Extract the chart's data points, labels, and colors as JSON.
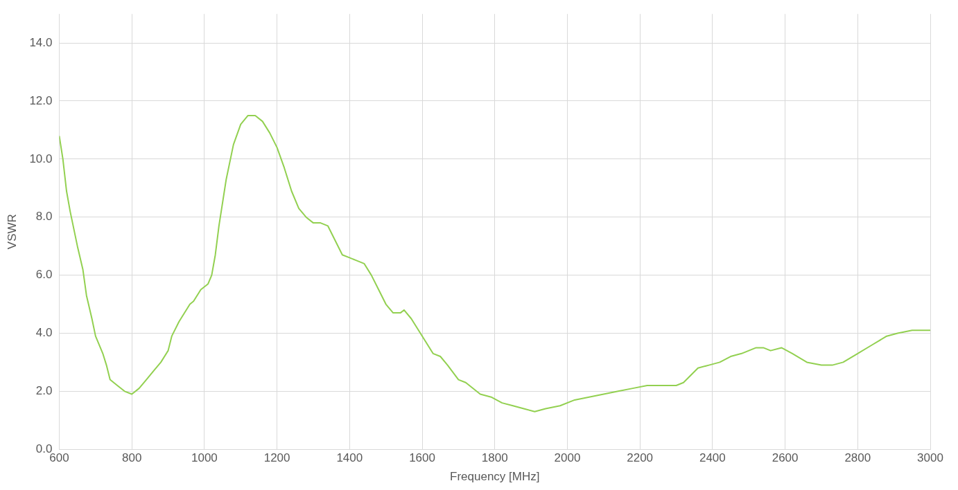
{
  "chart_data": {
    "type": "line",
    "xlabel": "Frequency [MHz]",
    "ylabel": "VSWR",
    "x": [
      600,
      610,
      620,
      630,
      650,
      665,
      675,
      690,
      700,
      720,
      730,
      740,
      760,
      780,
      800,
      820,
      840,
      860,
      880,
      900,
      910,
      930,
      960,
      970,
      990,
      1010,
      1020,
      1030,
      1040,
      1060,
      1080,
      1100,
      1120,
      1140,
      1160,
      1180,
      1200,
      1220,
      1240,
      1260,
      1280,
      1300,
      1320,
      1340,
      1360,
      1380,
      1400,
      1420,
      1440,
      1460,
      1480,
      1500,
      1520,
      1540,
      1550,
      1570,
      1590,
      1610,
      1630,
      1650,
      1670,
      1700,
      1720,
      1760,
      1790,
      1820,
      1850,
      1880,
      1910,
      1940,
      1980,
      2020,
      2060,
      2100,
      2140,
      2180,
      2220,
      2240,
      2260,
      2300,
      2320,
      2360,
      2390,
      2420,
      2450,
      2480,
      2520,
      2540,
      2560,
      2590,
      2620,
      2660,
      2700,
      2730,
      2760,
      2800,
      2840,
      2880,
      2910,
      2950,
      2980,
      3000
    ],
    "series": [
      {
        "color": "#92d050",
        "values": [
          10.8,
          10.0,
          8.9,
          8.2,
          7.0,
          6.2,
          5.3,
          4.5,
          3.9,
          3.3,
          2.9,
          2.4,
          2.2,
          2.0,
          1.9,
          2.1,
          2.4,
          2.7,
          3.0,
          3.4,
          3.9,
          4.4,
          5.0,
          5.1,
          5.5,
          5.7,
          6.0,
          6.7,
          7.7,
          9.3,
          10.5,
          11.2,
          11.5,
          11.5,
          11.3,
          10.9,
          10.4,
          9.7,
          8.9,
          8.3,
          8.0,
          7.8,
          7.8,
          7.7,
          7.2,
          6.7,
          6.6,
          6.5,
          6.4,
          6.0,
          5.5,
          5.0,
          4.7,
          4.7,
          4.8,
          4.5,
          4.1,
          3.7,
          3.3,
          3.2,
          2.9,
          2.4,
          2.3,
          1.9,
          1.8,
          1.6,
          1.5,
          1.4,
          1.3,
          1.4,
          1.5,
          1.7,
          1.8,
          1.9,
          2.0,
          2.1,
          2.2,
          2.2,
          2.2,
          2.2,
          2.3,
          2.8,
          2.9,
          3.0,
          3.2,
          3.3,
          3.5,
          3.5,
          3.4,
          3.5,
          3.3,
          3.0,
          2.9,
          2.9,
          3.0,
          3.3,
          3.6,
          3.9,
          4.0,
          4.1,
          4.1,
          4.1
        ]
      }
    ],
    "xlim": [
      600,
      3000
    ],
    "xticks": [
      600,
      800,
      1000,
      1200,
      1400,
      1600,
      1800,
      2000,
      2200,
      2400,
      2600,
      2800,
      3000
    ],
    "ylim": [
      0,
      15
    ],
    "yticks": [
      {
        "value": 0,
        "label": "0.0"
      },
      {
        "value": 2,
        "label": "2.0"
      },
      {
        "value": 4,
        "label": "4.0"
      },
      {
        "value": 6,
        "label": "6.0"
      },
      {
        "value": 8,
        "label": "8.0"
      },
      {
        "value": 10,
        "label": "10.0"
      },
      {
        "value": 12,
        "label": "12.0"
      },
      {
        "value": 14,
        "label": "14.0"
      }
    ],
    "grid": true,
    "legend": false,
    "marker": "none",
    "line_style": "solid"
  }
}
